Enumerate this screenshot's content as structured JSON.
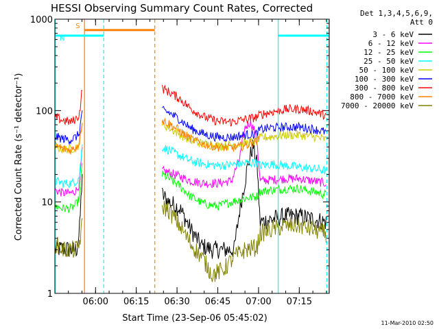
{
  "chart_data": {
    "type": "line",
    "title": "HESSI Observing Summary Count Rates, Corrected",
    "xlabel": "Start Time (23-Sep-06 05:45:02)",
    "ylabel": "Corrected Count Rate (s⁻¹ detector⁻¹)",
    "footer": "11-Mar-2010 02:50",
    "legend_header": [
      "Det 1,3,4,5,6,9,",
      "Att 0"
    ],
    "legend_position": "right",
    "y_scale": "log",
    "ylim": [
      1,
      1000
    ],
    "y_ticks": [
      {
        "value": 1,
        "label": "1"
      },
      {
        "value": 10,
        "label": "10"
      },
      {
        "value": 100,
        "label": "100"
      },
      {
        "value": 1000,
        "label": "1000"
      }
    ],
    "x_unit": "minutes after 05:45:02",
    "xlim": [
      0,
      101
    ],
    "x_ticks": [
      {
        "value": 14.97,
        "label": "06:00"
      },
      {
        "value": 29.97,
        "label": "06:15"
      },
      {
        "value": 44.97,
        "label": "06:30"
      },
      {
        "value": 59.97,
        "label": "06:45"
      },
      {
        "value": 74.97,
        "label": "07:00"
      },
      {
        "value": 89.97,
        "label": "07:15"
      }
    ],
    "segments": [
      [
        0,
        10.2
      ],
      [
        39.5,
        101
      ]
    ],
    "series": [
      {
        "name": "3 - 6 keV",
        "color": "#000000",
        "values": [
          [
            0,
            3.0
          ],
          [
            3,
            3.1
          ],
          [
            6,
            3.0
          ],
          [
            8,
            3.0
          ],
          [
            9,
            4.5
          ],
          [
            10.2,
            24.0
          ],
          [
            39.5,
            12.0
          ],
          [
            42,
            10.0
          ],
          [
            46,
            8.5
          ],
          [
            50,
            5.0
          ],
          [
            54,
            3.3
          ],
          [
            58,
            3.0
          ],
          [
            62,
            3.0
          ],
          [
            66,
            3.0
          ],
          [
            68,
            8.0
          ],
          [
            71,
            25.0
          ],
          [
            73,
            42.0
          ],
          [
            74.5,
            25.0
          ],
          [
            75.5,
            6.0
          ],
          [
            80,
            6.5
          ],
          [
            85,
            7.0
          ],
          [
            90,
            7.0
          ],
          [
            95,
            6.5
          ],
          [
            100,
            6.0
          ]
        ]
      },
      {
        "name": "6 - 12 keV",
        "color": "#ff00ff",
        "values": [
          [
            0,
            13.5
          ],
          [
            3,
            12.5
          ],
          [
            6,
            12.5
          ],
          [
            8,
            13.5
          ],
          [
            9,
            16.0
          ],
          [
            10.2,
            40.0
          ],
          [
            39.5,
            22.0
          ],
          [
            42,
            21.0
          ],
          [
            46,
            19.0
          ],
          [
            50,
            17.0
          ],
          [
            55,
            16.0
          ],
          [
            60,
            16.0
          ],
          [
            65,
            17.0
          ],
          [
            68,
            30.0
          ],
          [
            70,
            65.0
          ],
          [
            72,
            75.0
          ],
          [
            73.5,
            60.0
          ],
          [
            74.5,
            45.0
          ],
          [
            75.5,
            17.0
          ],
          [
            80,
            17.5
          ],
          [
            85,
            18.0
          ],
          [
            90,
            18.0
          ],
          [
            95,
            17.0
          ],
          [
            100,
            16.0
          ]
        ]
      },
      {
        "name": "12 - 25 keV",
        "color": "#00ff00",
        "values": [
          [
            0,
            9.0
          ],
          [
            3,
            8.5
          ],
          [
            6,
            8.5
          ],
          [
            8,
            9.5
          ],
          [
            9,
            11.0
          ],
          [
            10.2,
            30.0
          ],
          [
            39.5,
            20.0
          ],
          [
            42,
            18.0
          ],
          [
            46,
            15.0
          ],
          [
            50,
            11.5
          ],
          [
            55,
            9.5
          ],
          [
            60,
            9.0
          ],
          [
            65,
            10.0
          ],
          [
            70,
            11.0
          ],
          [
            74.5,
            11.5
          ],
          [
            75.5,
            13.0
          ],
          [
            80,
            13.5
          ],
          [
            85,
            14.0
          ],
          [
            90,
            14.0
          ],
          [
            95,
            13.0
          ],
          [
            100,
            12.0
          ]
        ]
      },
      {
        "name": "25 - 50 keV",
        "color": "#00ffff",
        "values": [
          [
            0,
            17.0
          ],
          [
            3,
            16.0
          ],
          [
            6,
            16.0
          ],
          [
            8,
            17.0
          ],
          [
            9,
            19.0
          ],
          [
            10.2,
            45.0
          ],
          [
            39.5,
            40.0
          ],
          [
            42,
            37.0
          ],
          [
            46,
            32.0
          ],
          [
            50,
            28.0
          ],
          [
            55,
            26.0
          ],
          [
            60,
            25.0
          ],
          [
            65,
            25.5
          ],
          [
            70,
            26.5
          ],
          [
            74.5,
            27.0
          ],
          [
            75.5,
            25.0
          ],
          [
            80,
            26.0
          ],
          [
            85,
            25.0
          ],
          [
            90,
            24.0
          ],
          [
            95,
            23.0
          ],
          [
            100,
            22.0
          ]
        ]
      },
      {
        "name": "50 - 100 keV",
        "color": "#cccc00",
        "values": [
          [
            0,
            40.0
          ],
          [
            3,
            38.0
          ],
          [
            6,
            38.0
          ],
          [
            8,
            40.0
          ],
          [
            9,
            43.0
          ],
          [
            10.2,
            80.0
          ],
          [
            39.5,
            70.0
          ],
          [
            42,
            65.0
          ],
          [
            46,
            55.0
          ],
          [
            50,
            47.0
          ],
          [
            55,
            43.0
          ],
          [
            60,
            41.0
          ],
          [
            65,
            42.0
          ],
          [
            70,
            44.0
          ],
          [
            74.5,
            46.0
          ],
          [
            75.5,
            50.0
          ],
          [
            80,
            52.0
          ],
          [
            85,
            54.0
          ],
          [
            90,
            54.0
          ],
          [
            95,
            52.0
          ],
          [
            100,
            48.0
          ]
        ]
      },
      {
        "name": "100 - 300 keV",
        "color": "#0000ff",
        "values": [
          [
            0,
            52.0
          ],
          [
            3,
            49.0
          ],
          [
            6,
            48.0
          ],
          [
            8,
            52.0
          ],
          [
            9,
            56.0
          ],
          [
            10.2,
            110.0
          ],
          [
            39.5,
            100.0
          ],
          [
            42,
            95.0
          ],
          [
            46,
            80.0
          ],
          [
            50,
            64.0
          ],
          [
            55,
            55.0
          ],
          [
            60,
            51.0
          ],
          [
            65,
            51.0
          ],
          [
            70,
            54.0
          ],
          [
            74.5,
            56.0
          ],
          [
            75.5,
            62.0
          ],
          [
            80,
            65.0
          ],
          [
            85,
            66.0
          ],
          [
            90,
            66.0
          ],
          [
            95,
            63.0
          ],
          [
            100,
            58.0
          ]
        ]
      },
      {
        "name": "300 - 800 keV",
        "color": "#ff0000",
        "values": [
          [
            0,
            85.0
          ],
          [
            3,
            78.0
          ],
          [
            6,
            75.0
          ],
          [
            8,
            82.0
          ],
          [
            9,
            90.0
          ],
          [
            10.2,
            190.0
          ],
          [
            39.5,
            175.0
          ],
          [
            42,
            160.0
          ],
          [
            46,
            135.0
          ],
          [
            50,
            105.0
          ],
          [
            55,
            85.0
          ],
          [
            60,
            76.0
          ],
          [
            65,
            75.0
          ],
          [
            70,
            80.0
          ],
          [
            74.5,
            85.0
          ],
          [
            75.5,
            90.0
          ],
          [
            80,
            97.0
          ],
          [
            85,
            103.0
          ],
          [
            90,
            104.0
          ],
          [
            95,
            98.0
          ],
          [
            100,
            88.0
          ]
        ]
      },
      {
        "name": "800 - 7000 keV",
        "color": "#ff8000",
        "values": [
          [
            0,
            42.0
          ],
          [
            3,
            38.0
          ],
          [
            6,
            37.0
          ],
          [
            8,
            40.0
          ],
          [
            9,
            45.0
          ],
          [
            10.2,
            85.0
          ],
          [
            39.5,
            78.0
          ],
          [
            42,
            72.0
          ],
          [
            46,
            60.0
          ],
          [
            50,
            49.0
          ],
          [
            55,
            43.0
          ],
          [
            60,
            40.0
          ],
          [
            65,
            39.0
          ],
          [
            70,
            41.0
          ],
          [
            74.5,
            47.0
          ],
          [
            75.5,
            50.0
          ]
        ]
      },
      {
        "name": "7000 - 20000 keV",
        "color": "#808000",
        "values": [
          [
            0,
            3.5
          ],
          [
            3,
            3.0
          ],
          [
            6,
            3.0
          ],
          [
            8,
            3.0
          ],
          [
            9,
            3.5
          ],
          [
            10.2,
            6.0
          ],
          [
            39.5,
            9.0
          ],
          [
            42,
            8.0
          ],
          [
            46,
            5.5
          ],
          [
            50,
            3.5
          ],
          [
            54,
            2.5
          ],
          [
            58,
            1.6
          ],
          [
            62,
            1.8
          ],
          [
            66,
            2.5
          ],
          [
            70,
            3.0
          ],
          [
            74.5,
            3.2
          ],
          [
            75.5,
            4.5
          ],
          [
            80,
            5.0
          ],
          [
            85,
            5.5
          ],
          [
            90,
            5.5
          ],
          [
            95,
            5.0
          ],
          [
            100,
            4.5
          ]
        ]
      }
    ],
    "attenuator_bars": [
      {
        "label": "S",
        "start": 10.9,
        "end": 36.8,
        "value": 760,
        "color": "#ff8000"
      },
      {
        "label": "N",
        "start": 0,
        "end": 18.0,
        "value": 660,
        "color": "#00ffff"
      },
      {
        "label": "",
        "start": 82.2,
        "end": 101,
        "value": 660,
        "color": "#00ffff"
      }
    ],
    "marker_lines": [
      {
        "x": 10.9,
        "color": "#ff8000",
        "style": "solid"
      },
      {
        "x": 18.0,
        "color": "#00ffff",
        "style": "dashed"
      },
      {
        "x": 36.8,
        "color": "#ff8000",
        "style": "dashed"
      },
      {
        "x": 82.2,
        "color": "#00ffff",
        "style": "solid"
      },
      {
        "x": 100.1,
        "color": "#00ffff",
        "style": "dashed"
      }
    ],
    "edge_lines": [
      {
        "x": 0,
        "color": "#00ffff"
      },
      {
        "x": 101,
        "color": "#00ffff"
      }
    ]
  }
}
